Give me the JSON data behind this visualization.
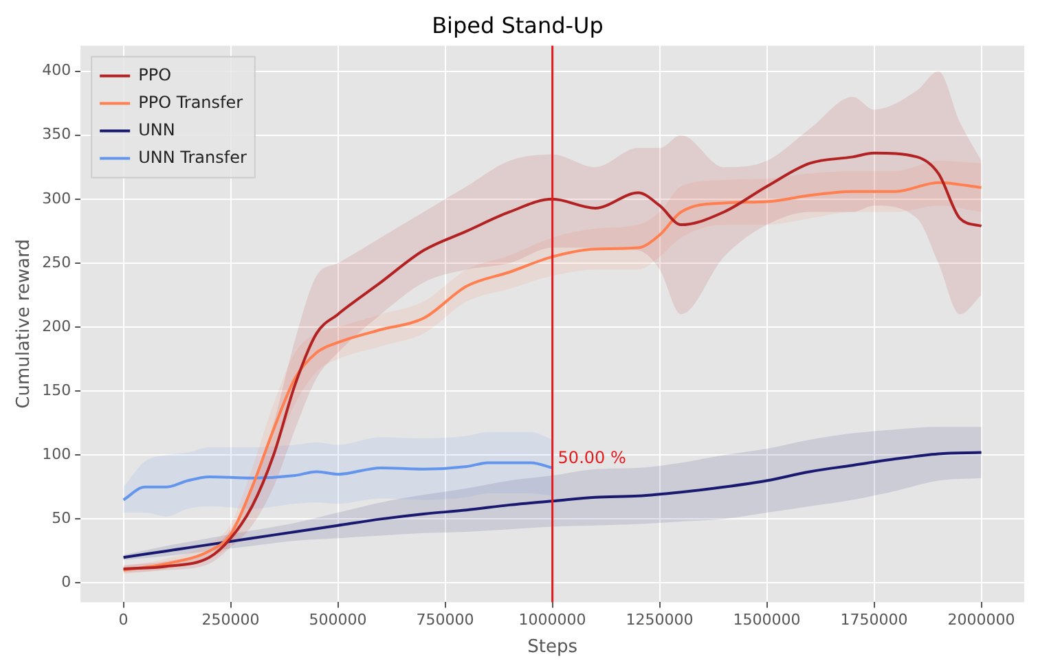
{
  "chart_data": {
    "type": "line",
    "title": "Biped Stand-Up",
    "xlabel": "Steps",
    "ylabel": "Cumulative reward",
    "xlim": [
      -100000,
      2100000
    ],
    "xticks": [
      0,
      250000,
      500000,
      750000,
      1000000,
      1250000,
      1500000,
      1750000,
      2000000
    ],
    "ylim": [
      -15,
      420
    ],
    "yticks": [
      0,
      50,
      100,
      150,
      200,
      250,
      300,
      350,
      400
    ],
    "grid": true,
    "legend": "top left",
    "marker": "none",
    "line_style": "solid",
    "series": [
      {
        "name": "PPO",
        "color": "#b22222",
        "x": [
          0,
          100000,
          200000,
          250000,
          300000,
          350000,
          400000,
          450000,
          500000,
          600000,
          700000,
          800000,
          900000,
          1000000,
          1100000,
          1200000,
          1250000,
          1300000,
          1400000,
          1500000,
          1600000,
          1700000,
          1750000,
          1850000,
          1900000,
          1950000,
          2000000
        ],
        "values": [
          11,
          13,
          20,
          35,
          60,
          100,
          155,
          195,
          210,
          235,
          260,
          275,
          290,
          300,
          293,
          305,
          295,
          280,
          290,
          310,
          328,
          333,
          336,
          333,
          320,
          285,
          279
        ],
        "lower": [
          8,
          10,
          15,
          28,
          45,
          75,
          120,
          160,
          180,
          210,
          235,
          245,
          250,
          262,
          262,
          260,
          245,
          210,
          255,
          280,
          290,
          290,
          295,
          285,
          250,
          210,
          225
        ],
        "upper": [
          14,
          17,
          26,
          42,
          75,
          125,
          190,
          240,
          250,
          270,
          290,
          310,
          330,
          335,
          325,
          340,
          340,
          350,
          325,
          330,
          355,
          380,
          370,
          385,
          400,
          360,
          330
        ]
      },
      {
        "name": "PPO Transfer",
        "color": "#ff7f50",
        "x": [
          0,
          100000,
          200000,
          250000,
          300000,
          350000,
          400000,
          450000,
          500000,
          600000,
          700000,
          800000,
          900000,
          1000000,
          1100000,
          1200000,
          1250000,
          1300000,
          1400000,
          1500000,
          1600000,
          1700000,
          1800000,
          1900000,
          2000000
        ],
        "values": [
          10,
          15,
          25,
          38,
          75,
          120,
          160,
          180,
          188,
          198,
          207,
          232,
          243,
          255,
          261,
          262,
          272,
          290,
          297,
          298,
          303,
          306,
          306,
          313,
          309
        ],
        "lower": [
          7,
          11,
          19,
          30,
          60,
          100,
          140,
          165,
          175,
          185,
          195,
          220,
          230,
          240,
          245,
          245,
          255,
          270,
          280,
          280,
          285,
          290,
          290,
          295,
          290
        ],
        "upper": [
          13,
          19,
          31,
          46,
          90,
          140,
          180,
          195,
          200,
          210,
          220,
          245,
          256,
          270,
          277,
          280,
          290,
          310,
          315,
          316,
          320,
          322,
          322,
          330,
          328
        ]
      },
      {
        "name": "UNN",
        "color": "#191970",
        "x": [
          0,
          100000,
          200000,
          300000,
          400000,
          500000,
          600000,
          700000,
          800000,
          900000,
          1000000,
          1100000,
          1200000,
          1300000,
          1400000,
          1500000,
          1600000,
          1700000,
          1800000,
          1900000,
          2000000
        ],
        "values": [
          20,
          25,
          30,
          35,
          40,
          45,
          50,
          54,
          57,
          61,
          64,
          67,
          68,
          71,
          75,
          80,
          87,
          92,
          97,
          101,
          102
        ],
        "lower": [
          18,
          21,
          25,
          29,
          33,
          35,
          37,
          39,
          40,
          42,
          44,
          45,
          46,
          48,
          50,
          55,
          60,
          65,
          72,
          80,
          82
        ],
        "upper": [
          22,
          29,
          35,
          41,
          47,
          55,
          63,
          69,
          74,
          80,
          84,
          89,
          90,
          94,
          100,
          105,
          112,
          117,
          120,
          122,
          122
        ]
      },
      {
        "name": "UNN Transfer",
        "color": "#6495ed",
        "x": [
          0,
          50000,
          100000,
          150000,
          200000,
          300000,
          400000,
          450000,
          500000,
          600000,
          700000,
          800000,
          850000,
          950000,
          1000000
        ],
        "values": [
          65,
          75,
          75,
          80,
          83,
          82,
          84,
          87,
          85,
          90,
          89,
          91,
          94,
          94,
          90
        ],
        "lower": [
          55,
          55,
          52,
          58,
          60,
          58,
          62,
          63,
          62,
          66,
          65,
          67,
          70,
          70,
          68
        ],
        "upper": [
          75,
          95,
          100,
          102,
          106,
          106,
          108,
          110,
          108,
          114,
          113,
          115,
          118,
          118,
          112
        ]
      }
    ],
    "ref_lines": [
      {
        "axis": "x",
        "value": 1000000,
        "color": "#e41a1c"
      }
    ],
    "annotations": [
      {
        "text": "50.00 %",
        "x": 1000000,
        "y": 97
      }
    ]
  }
}
